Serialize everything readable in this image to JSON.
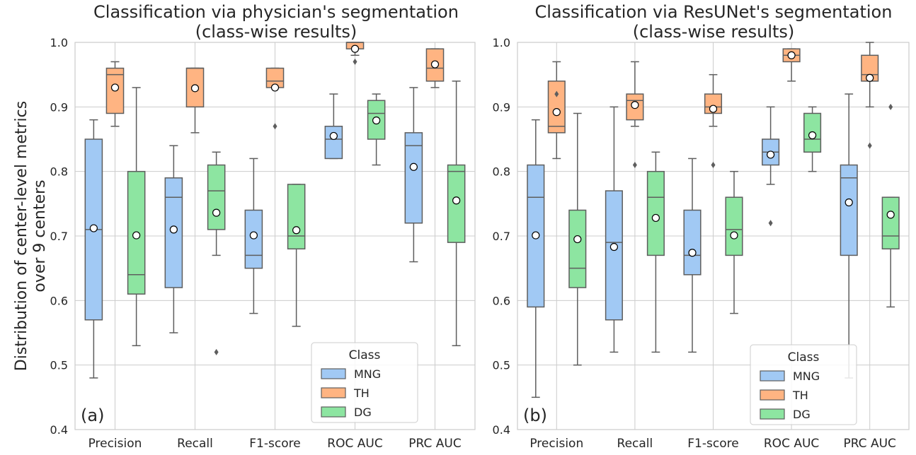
{
  "figure": {
    "ylabel_line1": "Distribution of center-level metrics",
    "ylabel_line2": "over 9 centers"
  },
  "legend": {
    "title": "Class",
    "entries": [
      "MNG",
      "TH",
      "DG"
    ]
  },
  "colors": {
    "MNG": "#a1c9f4",
    "TH": "#ffb482",
    "DG": "#8de5a1",
    "box_edge": "#5e5e5e",
    "grid": "#cccccc"
  },
  "chart_data": [
    {
      "type": "box",
      "title_line1": "Classification via physician's segmentation",
      "title_line2": "(class-wise results)",
      "panel_label": "(a)",
      "categories": [
        "Precision",
        "Recall",
        "F1-score",
        "ROC AUC",
        "PRC AUC"
      ],
      "ylim": [
        0.4,
        1.0
      ],
      "yticks": [
        "0.4",
        "0.5",
        "0.6",
        "0.7",
        "0.8",
        "0.9",
        "1.0"
      ],
      "grid": true,
      "legend_position": "lower-right",
      "mean_marker": "white circle",
      "series": [
        {
          "name": "MNG",
          "boxes": [
            {
              "whislo": 0.48,
              "q1": 0.57,
              "med": 0.71,
              "q3": 0.85,
              "whishi": 0.88,
              "mean": 0.712,
              "fliers": []
            },
            {
              "whislo": 0.55,
              "q1": 0.62,
              "med": 0.76,
              "q3": 0.79,
              "whishi": 0.84,
              "mean": 0.71,
              "fliers": []
            },
            {
              "whislo": 0.58,
              "q1": 0.65,
              "med": 0.67,
              "q3": 0.74,
              "whishi": 0.82,
              "mean": 0.701,
              "fliers": []
            },
            {
              "whislo": 0.82,
              "q1": 0.82,
              "med": 0.85,
              "q3": 0.87,
              "whishi": 0.92,
              "mean": 0.855,
              "fliers": []
            },
            {
              "whislo": 0.66,
              "q1": 0.72,
              "med": 0.84,
              "q3": 0.86,
              "whishi": 0.93,
              "mean": 0.807,
              "fliers": []
            }
          ]
        },
        {
          "name": "TH",
          "boxes": [
            {
              "whislo": 0.87,
              "q1": 0.89,
              "med": 0.95,
              "q3": 0.96,
              "whishi": 0.97,
              "mean": 0.93,
              "fliers": []
            },
            {
              "whislo": 0.86,
              "q1": 0.9,
              "med": 0.96,
              "q3": 0.96,
              "whishi": 0.96,
              "mean": 0.929,
              "fliers": []
            },
            {
              "whislo": 0.93,
              "q1": 0.93,
              "med": 0.94,
              "q3": 0.96,
              "whishi": 0.96,
              "mean": 0.93,
              "fliers": [
                0.87
              ]
            },
            {
              "whislo": 0.98,
              "q1": 0.99,
              "med": 1.0,
              "q3": 1.0,
              "whishi": 1.0,
              "mean": 0.99,
              "fliers": [
                0.97
              ]
            },
            {
              "whislo": 0.93,
              "q1": 0.94,
              "med": 0.96,
              "q3": 0.99,
              "whishi": 0.99,
              "mean": 0.966,
              "fliers": []
            }
          ]
        },
        {
          "name": "DG",
          "boxes": [
            {
              "whislo": 0.53,
              "q1": 0.61,
              "med": 0.64,
              "q3": 0.8,
              "whishi": 0.93,
              "mean": 0.701,
              "fliers": []
            },
            {
              "whislo": 0.67,
              "q1": 0.71,
              "med": 0.77,
              "q3": 0.81,
              "whishi": 0.83,
              "mean": 0.736,
              "fliers": [
                0.52
              ]
            },
            {
              "whislo": 0.56,
              "q1": 0.68,
              "med": 0.7,
              "q3": 0.78,
              "whishi": 0.78,
              "mean": 0.709,
              "fliers": []
            },
            {
              "whislo": 0.81,
              "q1": 0.85,
              "med": 0.89,
              "q3": 0.91,
              "whishi": 0.92,
              "mean": 0.879,
              "fliers": []
            },
            {
              "whislo": 0.53,
              "q1": 0.69,
              "med": 0.8,
              "q3": 0.81,
              "whishi": 0.94,
              "mean": 0.755,
              "fliers": []
            }
          ]
        }
      ]
    },
    {
      "type": "box",
      "title_line1": "Classification via ResUNet's segmentation",
      "title_line2": "(class-wise results)",
      "panel_label": "(b)",
      "categories": [
        "Precision",
        "Recall",
        "F1-score",
        "ROC AUC",
        "PRC AUC"
      ],
      "ylim": [
        0.4,
        1.0
      ],
      "yticks": [
        "0.4",
        "0.5",
        "0.6",
        "0.7",
        "0.8",
        "0.9",
        "1.0"
      ],
      "grid": true,
      "legend_position": "lower-right",
      "mean_marker": "white circle",
      "series": [
        {
          "name": "MNG",
          "boxes": [
            {
              "whislo": 0.45,
              "q1": 0.59,
              "med": 0.76,
              "q3": 0.81,
              "whishi": 0.88,
              "mean": 0.701,
              "fliers": []
            },
            {
              "whislo": 0.52,
              "q1": 0.57,
              "med": 0.69,
              "q3": 0.77,
              "whishi": 0.9,
              "mean": 0.683,
              "fliers": []
            },
            {
              "whislo": 0.52,
              "q1": 0.64,
              "med": 0.67,
              "q3": 0.74,
              "whishi": 0.82,
              "mean": 0.674,
              "fliers": []
            },
            {
              "whislo": 0.78,
              "q1": 0.81,
              "med": 0.83,
              "q3": 0.85,
              "whishi": 0.9,
              "mean": 0.826,
              "fliers": [
                0.72
              ]
            },
            {
              "whislo": 0.48,
              "q1": 0.67,
              "med": 0.79,
              "q3": 0.81,
              "whishi": 0.92,
              "mean": 0.752,
              "fliers": []
            }
          ]
        },
        {
          "name": "TH",
          "boxes": [
            {
              "whislo": 0.82,
              "q1": 0.86,
              "med": 0.87,
              "q3": 0.94,
              "whishi": 0.97,
              "mean": 0.892,
              "fliers": [
                0.92
              ]
            },
            {
              "whislo": 0.87,
              "q1": 0.88,
              "med": 0.91,
              "q3": 0.92,
              "whishi": 0.97,
              "mean": 0.903,
              "fliers": [
                0.81
              ]
            },
            {
              "whislo": 0.87,
              "q1": 0.89,
              "med": 0.9,
              "q3": 0.92,
              "whishi": 0.95,
              "mean": 0.897,
              "fliers": [
                0.81
              ]
            },
            {
              "whislo": 0.94,
              "q1": 0.97,
              "med": 0.98,
              "q3": 0.99,
              "whishi": 0.99,
              "mean": 0.98,
              "fliers": []
            },
            {
              "whislo": 0.9,
              "q1": 0.94,
              "med": 0.95,
              "q3": 0.98,
              "whishi": 1.0,
              "mean": 0.945,
              "fliers": [
                0.84
              ]
            }
          ]
        },
        {
          "name": "DG",
          "boxes": [
            {
              "whislo": 0.5,
              "q1": 0.62,
              "med": 0.65,
              "q3": 0.74,
              "whishi": 0.89,
              "mean": 0.695,
              "fliers": []
            },
            {
              "whislo": 0.52,
              "q1": 0.67,
              "med": 0.76,
              "q3": 0.8,
              "whishi": 0.83,
              "mean": 0.728,
              "fliers": []
            },
            {
              "whislo": 0.58,
              "q1": 0.67,
              "med": 0.71,
              "q3": 0.76,
              "whishi": 0.8,
              "mean": 0.701,
              "fliers": []
            },
            {
              "whislo": 0.8,
              "q1": 0.83,
              "med": 0.85,
              "q3": 0.89,
              "whishi": 0.9,
              "mean": 0.856,
              "fliers": []
            },
            {
              "whislo": 0.59,
              "q1": 0.68,
              "med": 0.7,
              "q3": 0.76,
              "whishi": 0.76,
              "mean": 0.733,
              "fliers": [
                0.9
              ]
            }
          ]
        }
      ]
    }
  ]
}
